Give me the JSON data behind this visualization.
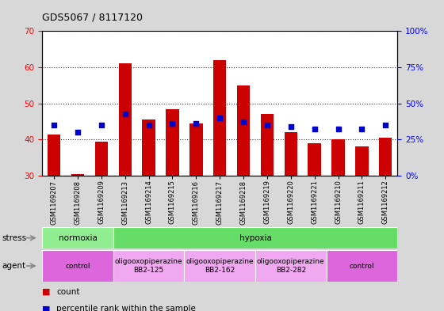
{
  "title": "GDS5067 / 8117120",
  "samples": [
    "GSM1169207",
    "GSM1169208",
    "GSM1169209",
    "GSM1169213",
    "GSM1169214",
    "GSM1169215",
    "GSM1169216",
    "GSM1169217",
    "GSM1169218",
    "GSM1169219",
    "GSM1169220",
    "GSM1169221",
    "GSM1169210",
    "GSM1169211",
    "GSM1169212"
  ],
  "counts": [
    41.5,
    30.5,
    39.5,
    61.0,
    45.5,
    48.5,
    44.5,
    62.0,
    55.0,
    47.0,
    42.0,
    39.0,
    40.0,
    38.0,
    40.5
  ],
  "percentiles": [
    44.0,
    42.0,
    44.0,
    47.0,
    44.0,
    44.5,
    44.5,
    46.0,
    45.0,
    44.0,
    43.5,
    43.0,
    43.0,
    43.0,
    44.0
  ],
  "bar_bottom": 30,
  "ylim_left": [
    30,
    70
  ],
  "ylim_right": [
    0,
    100
  ],
  "yticks_left": [
    30,
    40,
    50,
    60,
    70
  ],
  "yticks_right": [
    0,
    25,
    50,
    75,
    100
  ],
  "ytick_labels_right": [
    "0%",
    "25%",
    "50%",
    "75%",
    "100%"
  ],
  "bar_color": "#cc0000",
  "dot_color": "#0000cc",
  "fig_bg_color": "#d8d8d8",
  "plot_bg": "#ffffff",
  "stress_groups": [
    {
      "label": "normoxia",
      "start": 0,
      "end": 3,
      "color": "#90ee90"
    },
    {
      "label": "hypoxia",
      "start": 3,
      "end": 15,
      "color": "#66dd66"
    }
  ],
  "agent_groups": [
    {
      "label": "control",
      "start": 0,
      "end": 3,
      "color": "#dd66dd"
    },
    {
      "label": "oligooxopiperazine\nBB2-125",
      "start": 3,
      "end": 6,
      "color": "#f0a8f0"
    },
    {
      "label": "oligooxopiperazine\nBB2-162",
      "start": 6,
      "end": 9,
      "color": "#f0a8f0"
    },
    {
      "label": "oligooxopiperazine\nBB2-282",
      "start": 9,
      "end": 12,
      "color": "#f0a8f0"
    },
    {
      "label": "control",
      "start": 12,
      "end": 15,
      "color": "#dd66dd"
    }
  ],
  "legend_items": [
    {
      "label": "count",
      "color": "#cc0000"
    },
    {
      "label": "percentile rank within the sample",
      "color": "#0000cc"
    }
  ]
}
